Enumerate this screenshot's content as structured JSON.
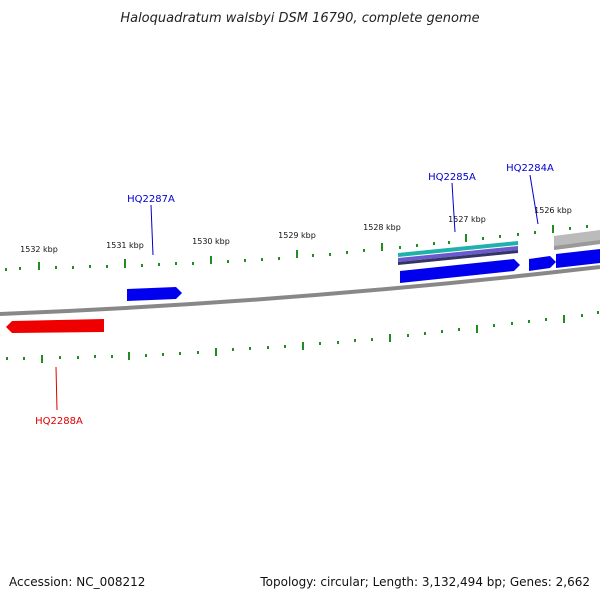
{
  "title": "Haloquadratum walsbyi DSM 16790, complete genome",
  "footer": {
    "accession": "Accession: NC_008212",
    "summary": "Topology: circular; Length: 3,132,494 bp; Genes: 2,662"
  },
  "ticks": [
    "1532 kbp",
    "1531 kbp",
    "1530 kbp",
    "1529 kbp",
    "1528 kbp",
    "1527 kbp",
    "1526 kbp"
  ],
  "genes": [
    {
      "label": "HQ2287A",
      "strand": "forward",
      "color": "#0000cc"
    },
    {
      "label": "HQ2285A",
      "strand": "forward",
      "color": "#0000cc"
    },
    {
      "label": "HQ2284A",
      "strand": "forward",
      "color": "#0000cc"
    },
    {
      "label": "HQ2288A",
      "strand": "reverse",
      "color": "#dd0000"
    }
  ],
  "colors": {
    "backbone": "#888888",
    "tick": "#228B22",
    "forward_gene": "#0000ee",
    "reverse_gene": "#ee0000",
    "feature_teal": "#20b2aa",
    "feature_purple": "#6a5acd",
    "feature_gray": "#bbbbbb"
  }
}
